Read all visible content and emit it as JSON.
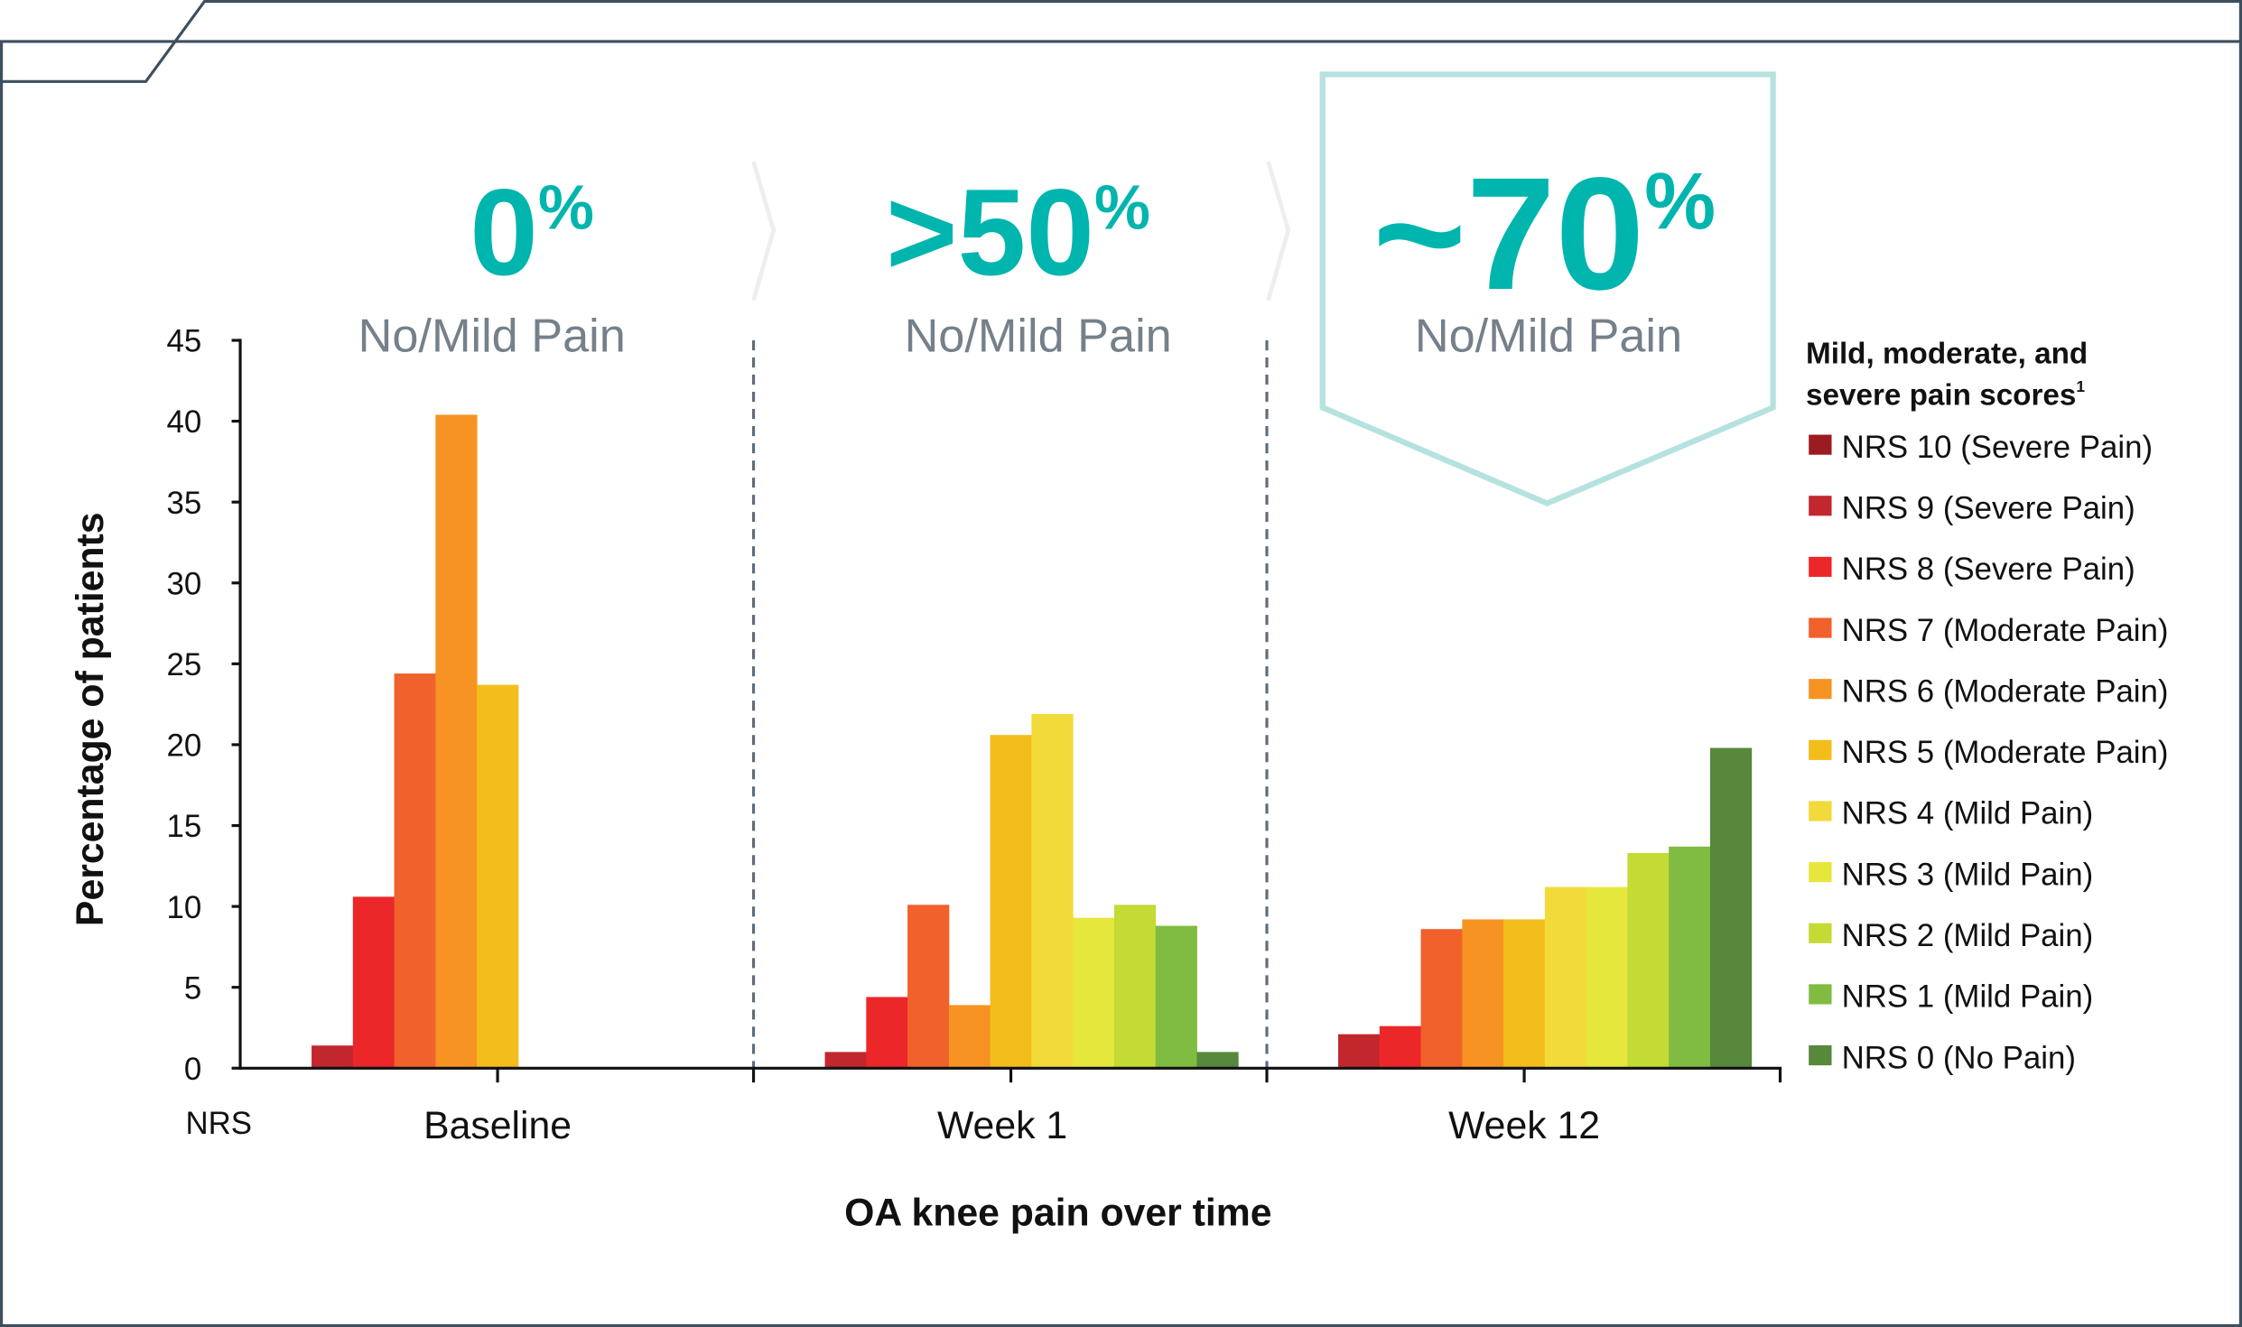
{
  "colors": {
    "accent": "#00b5ad",
    "frame": "#3d4f5f",
    "callout_border": "#b5e2df",
    "subtitle": "#75808a"
  },
  "headlines": [
    {
      "value": "0",
      "unit": "%",
      "label": "No/Mild Pain"
    },
    {
      "value": ">50",
      "unit": "%",
      "label": "No/Mild Pain"
    },
    {
      "value": "~70",
      "unit": "%",
      "label": "No/Mild Pain"
    }
  ],
  "chart_data": {
    "type": "bar",
    "title": "",
    "xlabel": "OA knee pain over time",
    "ylabel": "Percentage of patients",
    "x_prefix_label": "NRS",
    "ylim": [
      0,
      45
    ],
    "yticks": [
      "0",
      "5",
      "10",
      "15",
      "20",
      "25",
      "30",
      "35",
      "40",
      "45"
    ],
    "grid": false,
    "legend_position": "right",
    "legend_title_line1": "Mild, moderate, and",
    "legend_title_line2": "severe pain scores",
    "legend_footnote": "1",
    "categories": [
      "Baseline",
      "Week 1",
      "Week 12"
    ],
    "series": [
      {
        "name": "NRS 10 (Severe Pain)",
        "color": "#9b1c20",
        "values": [
          0,
          0,
          0
        ]
      },
      {
        "name": "NRS 9 (Severe Pain)",
        "color": "#c1272d",
        "values": [
          1.4,
          1.0,
          2.1
        ]
      },
      {
        "name": "NRS 8 (Severe Pain)",
        "color": "#ec2729",
        "values": [
          10.6,
          4.4,
          2.6
        ]
      },
      {
        "name": "NRS 7 (Moderate Pain)",
        "color": "#f0612b",
        "values": [
          24.4,
          10.1,
          8.6
        ]
      },
      {
        "name": "NRS 6 (Moderate Pain)",
        "color": "#f69322",
        "values": [
          40.4,
          3.9,
          9.2
        ]
      },
      {
        "name": "NRS 5 (Moderate Pain)",
        "color": "#f3bd1b",
        "values": [
          23.7,
          20.6,
          9.2
        ]
      },
      {
        "name": "NRS 4 (Mild Pain)",
        "color": "#f2da3a",
        "values": [
          0,
          21.9,
          11.2
        ]
      },
      {
        "name": "NRS 3 (Mild Pain)",
        "color": "#e6e73c",
        "values": [
          0,
          9.3,
          11.2
        ]
      },
      {
        "name": "NRS 2 (Mild Pain)",
        "color": "#c4da35",
        "values": [
          0,
          10.1,
          13.3
        ]
      },
      {
        "name": "NRS 1 (Mild Pain)",
        "color": "#80bc41",
        "values": [
          0,
          8.8,
          13.7
        ]
      },
      {
        "name": "NRS 0 (No Pain)",
        "color": "#57883b",
        "values": [
          0,
          1.0,
          19.8
        ]
      }
    ]
  }
}
